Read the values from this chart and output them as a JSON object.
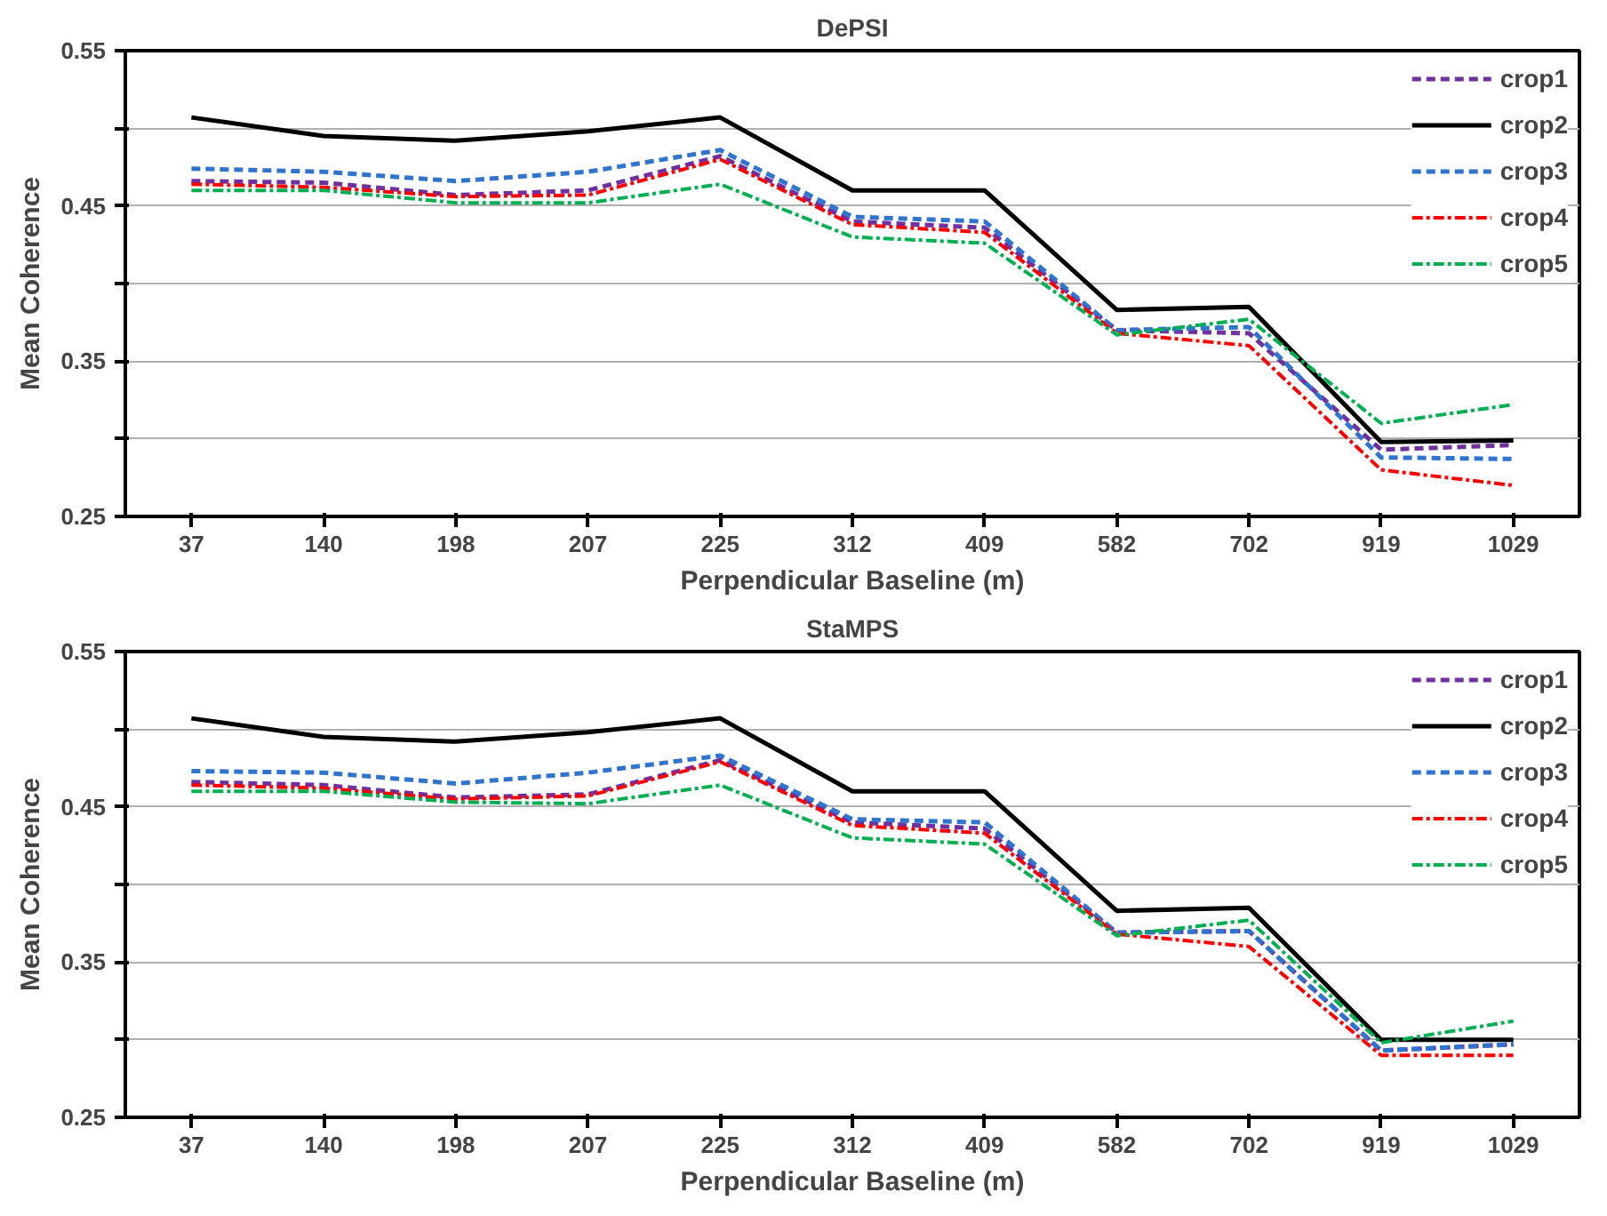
{
  "chart_data": [
    {
      "type": "line",
      "title": "DePSI",
      "xlabel": "Perpendicular Baseline (m)",
      "ylabel": "Mean Coherence",
      "categories": [
        "37",
        "140",
        "198",
        "207",
        "225",
        "312",
        "409",
        "582",
        "702",
        "919",
        "1029"
      ],
      "ylim": [
        0.25,
        0.55
      ],
      "yticks": [
        0.25,
        {
          "value": 0.3,
          "label": null
        },
        0.35,
        {
          "value": 0.4,
          "label": null
        },
        0.45,
        {
          "value": 0.5,
          "label": null
        },
        0.55
      ],
      "grid": "y",
      "legend": "right",
      "series": [
        {
          "name": "crop1",
          "color": "#7030a0",
          "line_style": "dashed",
          "values": [
            0.466,
            0.465,
            0.457,
            0.46,
            0.482,
            0.44,
            0.436,
            0.37,
            0.368,
            0.293,
            0.296
          ]
        },
        {
          "name": "crop2",
          "color": "#000000",
          "line_style": "solid",
          "values": [
            0.507,
            0.495,
            0.492,
            0.498,
            0.507,
            0.46,
            0.46,
            0.383,
            0.385,
            0.298,
            0.299
          ]
        },
        {
          "name": "crop3",
          "color": "#2f75d0",
          "line_style": "dashed",
          "values": [
            0.474,
            0.472,
            0.466,
            0.472,
            0.486,
            0.443,
            0.44,
            0.37,
            0.372,
            0.288,
            0.287
          ]
        },
        {
          "name": "crop4",
          "color": "#ff0000",
          "line_style": "dashdot",
          "values": [
            0.464,
            0.462,
            0.456,
            0.457,
            0.48,
            0.438,
            0.433,
            0.368,
            0.36,
            0.28,
            0.27
          ]
        },
        {
          "name": "crop5",
          "color": "#00b050",
          "line_style": "dashdot",
          "values": [
            0.46,
            0.46,
            0.452,
            0.452,
            0.464,
            0.43,
            0.426,
            0.367,
            0.377,
            0.31,
            0.322
          ]
        }
      ]
    },
    {
      "type": "line",
      "title": "StaMPS",
      "xlabel": "Perpendicular Baseline (m)",
      "ylabel": "Mean Coherence",
      "categories": [
        "37",
        "140",
        "198",
        "207",
        "225",
        "312",
        "409",
        "582",
        "702",
        "919",
        "1029"
      ],
      "ylim": [
        0.25,
        0.55
      ],
      "yticks": [
        0.25,
        {
          "value": 0.3,
          "label": null
        },
        0.35,
        {
          "value": 0.4,
          "label": null
        },
        0.45,
        {
          "value": 0.5,
          "label": null
        },
        0.55
      ],
      "grid": "y",
      "legend": "right",
      "series": [
        {
          "name": "crop1",
          "color": "#7030a0",
          "line_style": "dashed",
          "values": [
            0.466,
            0.464,
            0.456,
            0.458,
            0.48,
            0.44,
            0.436,
            0.369,
            0.37,
            0.293,
            0.297
          ]
        },
        {
          "name": "crop2",
          "color": "#000000",
          "line_style": "solid",
          "values": [
            0.507,
            0.495,
            0.492,
            0.498,
            0.507,
            0.46,
            0.46,
            0.383,
            0.385,
            0.3,
            0.3
          ]
        },
        {
          "name": "crop3",
          "color": "#2f75d0",
          "line_style": "dashed",
          "values": [
            0.473,
            0.472,
            0.465,
            0.472,
            0.483,
            0.442,
            0.44,
            0.369,
            0.37,
            0.293,
            0.297
          ]
        },
        {
          "name": "crop4",
          "color": "#ff0000",
          "line_style": "dashdot",
          "values": [
            0.464,
            0.462,
            0.455,
            0.457,
            0.479,
            0.438,
            0.433,
            0.368,
            0.36,
            0.29,
            0.29
          ]
        },
        {
          "name": "crop5",
          "color": "#00b050",
          "line_style": "dashdot",
          "values": [
            0.46,
            0.46,
            0.453,
            0.452,
            0.464,
            0.43,
            0.426,
            0.367,
            0.377,
            0.298,
            0.312
          ]
        }
      ]
    }
  ]
}
